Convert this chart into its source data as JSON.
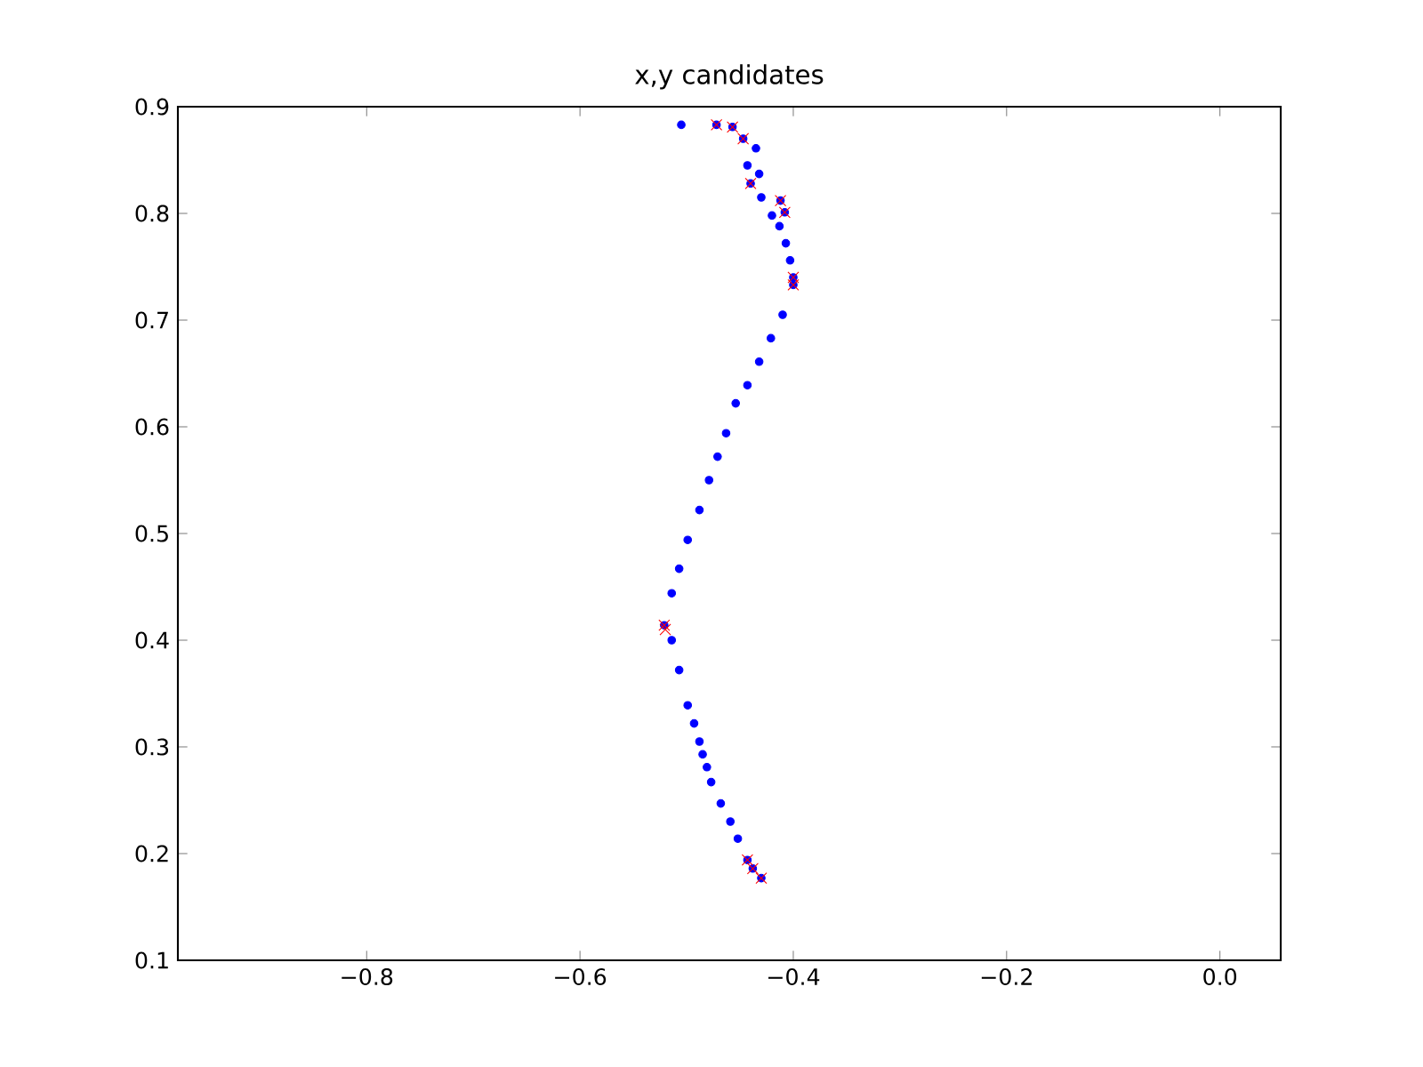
{
  "chart_data": {
    "type": "scatter",
    "title": "x,y candidates",
    "xlim": [
      -0.977,
      0.057
    ],
    "ylim": [
      0.1,
      0.9
    ],
    "xticks": [
      {
        "value": -0.8,
        "label": "−0.8"
      },
      {
        "value": -0.6,
        "label": "−0.6"
      },
      {
        "value": -0.4,
        "label": "−0.4"
      },
      {
        "value": -0.2,
        "label": "−0.2"
      },
      {
        "value": 0.0,
        "label": "0.0"
      }
    ],
    "yticks": [
      {
        "value": 0.1,
        "label": "0.1"
      },
      {
        "value": 0.2,
        "label": "0.2"
      },
      {
        "value": 0.3,
        "label": "0.3"
      },
      {
        "value": 0.4,
        "label": "0.4"
      },
      {
        "value": 0.5,
        "label": "0.5"
      },
      {
        "value": 0.6,
        "label": "0.6"
      },
      {
        "value": 0.7,
        "label": "0.7"
      },
      {
        "value": 0.8,
        "label": "0.8"
      },
      {
        "value": 0.9,
        "label": "0.9"
      }
    ],
    "grid": false,
    "series": [
      {
        "color": "#0000ff",
        "marker": "circle",
        "x": [
          -0.505,
          -0.472,
          -0.457,
          -0.447,
          -0.435,
          -0.443,
          -0.432,
          -0.44,
          -0.43,
          -0.412,
          -0.408,
          -0.42,
          -0.413,
          -0.407,
          -0.403,
          -0.4,
          -0.4,
          -0.41,
          -0.421,
          -0.432,
          -0.443,
          -0.454,
          -0.463,
          -0.471,
          -0.479,
          -0.488,
          -0.499,
          -0.507,
          -0.514,
          -0.521,
          -0.514,
          -0.507,
          -0.499,
          -0.493,
          -0.488,
          -0.485,
          -0.481,
          -0.477,
          -0.468,
          -0.459,
          -0.452,
          -0.443,
          -0.438,
          -0.43
        ],
        "values": [
          0.883,
          0.883,
          0.881,
          0.87,
          0.861,
          0.845,
          0.837,
          0.828,
          0.815,
          0.812,
          0.801,
          0.798,
          0.788,
          0.772,
          0.756,
          0.74,
          0.733,
          0.705,
          0.683,
          0.661,
          0.639,
          0.622,
          0.594,
          0.572,
          0.55,
          0.522,
          0.494,
          0.467,
          0.444,
          0.414,
          0.4,
          0.372,
          0.339,
          0.322,
          0.305,
          0.293,
          0.281,
          0.267,
          0.247,
          0.23,
          0.214,
          0.194,
          0.186,
          0.177
        ]
      },
      {
        "color": "#ff0000",
        "marker": "cross",
        "x": [
          -0.472,
          -0.457,
          -0.447,
          -0.44,
          -0.412,
          -0.408,
          -0.4,
          -0.4,
          -0.521,
          -0.52,
          -0.443,
          -0.438,
          -0.43
        ],
        "values": [
          0.883,
          0.881,
          0.87,
          0.828,
          0.812,
          0.801,
          0.74,
          0.733,
          0.414,
          0.41,
          0.194,
          0.186,
          0.177
        ]
      }
    ]
  }
}
